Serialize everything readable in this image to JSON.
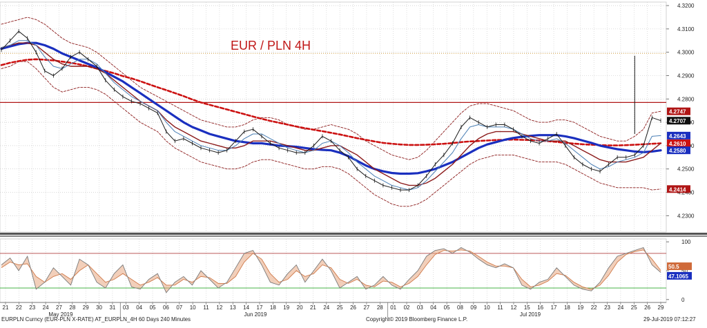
{
  "title": "EUR / PLN 4H",
  "footer": {
    "left": "EURPLN Curncy (EUR-PLN X-RATE) AT_EURPLN_4H 60 Days 240 Minutes",
    "center": "Copyright© 2019 Bloomberg Finance L.P.",
    "right": "29-Jul-2019 07:12:27"
  },
  "colors": {
    "price": "#1a1a1a",
    "ma_fast": "#4a7fb5",
    "ma_mid": "#8b1a1a",
    "ma_slow_blue": "#1a2fbf",
    "ma_long_dashed": "#cc1111",
    "bollinger": "#8b1a1a",
    "resistance": "#b01515",
    "dotted_level": "#d4a24c",
    "stoch_k": "#7a7a7a",
    "stoch_d": "#e8a882",
    "stoch_overbought": "#b04040",
    "stoch_oversold": "#2ea82e"
  },
  "chart_data": [
    {
      "type": "line",
      "title": "EUR / PLN 4H",
      "ylim": [
        4.223,
        4.3215
      ],
      "y_ticks": [
        "4.3200",
        "4.3100",
        "4.3000",
        "4.2900",
        "4.2800",
        "4.2700",
        "4.2600",
        "4.2500",
        "4.2400",
        "4.2300"
      ],
      "x_tick_labels": [
        "21",
        "22",
        "23",
        "24",
        "27",
        "28",
        "29",
        "30",
        "31",
        "03",
        "04",
        "05",
        "06",
        "07",
        "10",
        "11",
        "12",
        "13",
        "14",
        "17",
        "18",
        "19",
        "20",
        "21",
        "24",
        "25",
        "26",
        "27",
        "28",
        "01",
        "02",
        "03",
        "04",
        "05",
        "08",
        "09",
        "10",
        "11",
        "12",
        "15",
        "16",
        "17",
        "18",
        "19",
        "22",
        "23",
        "24",
        "25",
        "26",
        "29"
      ],
      "month_labels": [
        "May 2019",
        "Jun 2019",
        "Jul 2019"
      ],
      "horizontal_levels": [
        {
          "name": "resistance",
          "value": 4.2785
        },
        {
          "name": "dotted",
          "value": 4.2995
        }
      ],
      "last_value_tags": [
        {
          "value": "4.2747",
          "bg": "#b01515"
        },
        {
          "value": "4.2707",
          "bg": "#111111"
        },
        {
          "value": "4.2643",
          "bg": "#1a2fbf"
        },
        {
          "value": "4.2610",
          "bg": "#cc1111"
        },
        {
          "value": "4.2580",
          "bg": "#1a2fbf"
        },
        {
          "value": "4.2414",
          "bg": "#b01515"
        }
      ],
      "series": [
        {
          "role": "price",
          "values": [
            4.301,
            4.305,
            4.309,
            4.306,
            4.3,
            4.292,
            4.29,
            4.293,
            4.298,
            4.3,
            4.297,
            4.294,
            4.288,
            4.284,
            4.281,
            4.279,
            4.278,
            4.276,
            4.274,
            4.266,
            4.262,
            4.263,
            4.261,
            4.259,
            4.258,
            4.257,
            4.258,
            4.262,
            4.266,
            4.267,
            4.264,
            4.261,
            4.259,
            4.258,
            4.257,
            4.257,
            4.26,
            4.264,
            4.262,
            4.258,
            4.255,
            4.25,
            4.247,
            4.245,
            4.243,
            4.242,
            4.241,
            4.241,
            4.243,
            4.247,
            4.252,
            4.256,
            4.261,
            4.268,
            4.272,
            4.27,
            4.268,
            4.269,
            4.269,
            4.267,
            4.264,
            4.262,
            4.261,
            4.263,
            4.265,
            4.26,
            4.255,
            4.252,
            4.25,
            4.249,
            4.252,
            4.255,
            4.255,
            4.256,
            4.26,
            4.272,
            4.2707
          ]
        },
        {
          "role": "ma_fast",
          "values": [
            4.302,
            4.303,
            4.305,
            4.305,
            4.303,
            4.298,
            4.294,
            4.293,
            4.295,
            4.297,
            4.297,
            4.295,
            4.291,
            4.287,
            4.284,
            4.281,
            4.279,
            4.277,
            4.275,
            4.27,
            4.266,
            4.264,
            4.262,
            4.26,
            4.259,
            4.258,
            4.258,
            4.26,
            4.263,
            4.265,
            4.265,
            4.263,
            4.261,
            4.259,
            4.258,
            4.257,
            4.258,
            4.261,
            4.262,
            4.26,
            4.257,
            4.253,
            4.25,
            4.247,
            4.245,
            4.243,
            4.242,
            4.241,
            4.242,
            4.245,
            4.249,
            4.253,
            4.257,
            4.263,
            4.268,
            4.269,
            4.268,
            4.268,
            4.268,
            4.267,
            4.265,
            4.263,
            4.262,
            4.262,
            4.263,
            4.261,
            4.258,
            4.255,
            4.252,
            4.25,
            4.251,
            4.253,
            4.254,
            4.255,
            4.257,
            4.264,
            4.2643
          ]
        },
        {
          "role": "ma_mid",
          "values": [
            4.302,
            4.303,
            4.304,
            4.304,
            4.303,
            4.3,
            4.297,
            4.295,
            4.294,
            4.294,
            4.294,
            4.293,
            4.291,
            4.288,
            4.285,
            4.282,
            4.279,
            4.277,
            4.275,
            4.271,
            4.268,
            4.266,
            4.264,
            4.262,
            4.261,
            4.26,
            4.259,
            4.259,
            4.26,
            4.262,
            4.262,
            4.262,
            4.261,
            4.26,
            4.259,
            4.258,
            4.258,
            4.259,
            4.26,
            4.26,
            4.258,
            4.256,
            4.253,
            4.25,
            4.248,
            4.246,
            4.244,
            4.243,
            4.243,
            4.244,
            4.246,
            4.249,
            4.252,
            4.256,
            4.26,
            4.263,
            4.265,
            4.266,
            4.266,
            4.266,
            4.265,
            4.264,
            4.263,
            4.262,
            4.262,
            4.262,
            4.26,
            4.258,
            4.256,
            4.254,
            4.253,
            4.253,
            4.253,
            4.254,
            4.255,
            4.258,
            4.261
          ]
        },
        {
          "role": "ma_slow_blue",
          "values": [
            4.3015,
            4.3025,
            4.3035,
            4.304,
            4.304,
            4.303,
            4.3015,
            4.2995,
            4.298,
            4.2965,
            4.295,
            4.2935,
            4.2915,
            4.2895,
            4.2875,
            4.285,
            4.2825,
            4.28,
            4.2775,
            4.275,
            4.2725,
            4.27,
            4.268,
            4.2665,
            4.265,
            4.264,
            4.263,
            4.262,
            4.2615,
            4.261,
            4.261,
            4.2605,
            4.26,
            4.2598,
            4.2595,
            4.259,
            4.2585,
            4.2582,
            4.258,
            4.257,
            4.2555,
            4.2535,
            4.2515,
            4.25,
            4.249,
            4.2483,
            4.248,
            4.248,
            4.2482,
            4.249,
            4.25,
            4.2515,
            4.253,
            4.255,
            4.257,
            4.259,
            4.2605,
            4.2615,
            4.2625,
            4.2633,
            4.2638,
            4.2642,
            4.2645,
            4.2645,
            4.2645,
            4.264,
            4.2632,
            4.2622,
            4.2612,
            4.26,
            4.2592,
            4.2585,
            4.258,
            4.2575,
            4.2572,
            4.2575,
            4.258
          ]
        },
        {
          "role": "ma_long_dashed",
          "values": [
            4.2945,
            4.2955,
            4.2962,
            4.2968,
            4.297,
            4.2968,
            4.2965,
            4.296,
            4.2955,
            4.2948,
            4.294,
            4.293,
            4.292,
            4.291,
            4.2898,
            4.2888,
            4.2876,
            4.2863,
            4.285,
            4.2838,
            4.2825,
            4.2812,
            4.2798,
            4.2785,
            4.2775,
            4.2765,
            4.2755,
            4.2745,
            4.2735,
            4.2725,
            4.2715,
            4.2706,
            4.2698,
            4.269,
            4.2682,
            4.2675,
            4.2668,
            4.2662,
            4.2655,
            4.2648,
            4.264,
            4.2632,
            4.2625,
            4.2618,
            4.2612,
            4.2608,
            4.2605,
            4.2603,
            4.2603,
            4.2604,
            4.2606,
            4.2608,
            4.2611,
            4.2615,
            4.2618,
            4.262,
            4.2622,
            4.2624,
            4.2625,
            4.2626,
            4.2625,
            4.2624,
            4.2622,
            4.2619,
            4.2616,
            4.2612,
            4.2609,
            4.2606,
            4.2604,
            4.2602,
            4.2601,
            4.2601,
            4.2602,
            4.2604,
            4.2606,
            4.2608,
            4.261
          ]
        },
        {
          "role": "bb_upper",
          "values": [
            4.312,
            4.313,
            4.314,
            4.315,
            4.314,
            4.312,
            4.309,
            4.306,
            4.304,
            4.303,
            4.302,
            4.3,
            4.297,
            4.294,
            4.291,
            4.288,
            4.285,
            4.283,
            4.281,
            4.279,
            4.277,
            4.275,
            4.273,
            4.271,
            4.27,
            4.269,
            4.268,
            4.268,
            4.269,
            4.271,
            4.272,
            4.272,
            4.271,
            4.269,
            4.268,
            4.267,
            4.267,
            4.268,
            4.269,
            4.268,
            4.267,
            4.265,
            4.262,
            4.26,
            4.258,
            4.256,
            4.255,
            4.254,
            4.255,
            4.258,
            4.262,
            4.266,
            4.27,
            4.274,
            4.277,
            4.278,
            4.278,
            4.277,
            4.276,
            4.275,
            4.273,
            4.271,
            4.27,
            4.27,
            4.271,
            4.271,
            4.27,
            4.268,
            4.266,
            4.264,
            4.263,
            4.262,
            4.262,
            4.264,
            4.267,
            4.274,
            4.2747
          ]
        },
        {
          "role": "bb_lower",
          "values": [
            4.293,
            4.294,
            4.296,
            4.296,
            4.293,
            4.289,
            4.285,
            4.283,
            4.284,
            4.285,
            4.285,
            4.284,
            4.282,
            4.279,
            4.276,
            4.273,
            4.27,
            4.268,
            4.266,
            4.262,
            4.259,
            4.257,
            4.255,
            4.253,
            4.252,
            4.251,
            4.25,
            4.25,
            4.251,
            4.253,
            4.254,
            4.254,
            4.253,
            4.252,
            4.251,
            4.25,
            4.25,
            4.251,
            4.251,
            4.25,
            4.248,
            4.245,
            4.242,
            4.239,
            4.237,
            4.235,
            4.234,
            4.234,
            4.235,
            4.237,
            4.24,
            4.243,
            4.246,
            4.249,
            4.252,
            4.254,
            4.255,
            4.256,
            4.256,
            4.256,
            4.255,
            4.254,
            4.253,
            4.253,
            4.253,
            4.252,
            4.25,
            4.248,
            4.246,
            4.244,
            4.243,
            4.242,
            4.242,
            4.242,
            4.242,
            4.241,
            4.2414
          ]
        }
      ]
    },
    {
      "type": "line",
      "ylim": [
        -5,
        105
      ],
      "y_ticks": [
        "100",
        "50",
        "0"
      ],
      "levels": [
        {
          "name": "overbought",
          "value": 80
        },
        {
          "name": "oversold",
          "value": 20
        }
      ],
      "last_value_tags": [
        {
          "value": "47.1065",
          "bg": "#1a2fbf"
        },
        {
          "value": "50.5",
          "bg": "#cf6a3a"
        }
      ],
      "series": [
        {
          "role": "stoch_k",
          "values": [
            60,
            72,
            50,
            75,
            18,
            30,
            55,
            40,
            25,
            70,
            60,
            30,
            20,
            45,
            60,
            22,
            18,
            35,
            45,
            12,
            30,
            40,
            25,
            50,
            35,
            20,
            30,
            55,
            80,
            85,
            60,
            30,
            25,
            45,
            60,
            30,
            50,
            70,
            50,
            20,
            30,
            40,
            18,
            25,
            40,
            25,
            18,
            35,
            50,
            75,
            85,
            88,
            80,
            90,
            82,
            70,
            60,
            55,
            62,
            55,
            25,
            18,
            30,
            35,
            55,
            40,
            25,
            18,
            15,
            30,
            55,
            75,
            80,
            85,
            90,
            60,
            47
          ]
        },
        {
          "role": "stoch_d",
          "values": [
            55,
            65,
            60,
            62,
            40,
            30,
            40,
            45,
            35,
            50,
            60,
            45,
            30,
            35,
            45,
            35,
            25,
            30,
            38,
            25,
            25,
            35,
            30,
            40,
            38,
            28,
            28,
            40,
            65,
            80,
            70,
            45,
            30,
            35,
            50,
            40,
            45,
            60,
            55,
            35,
            28,
            35,
            25,
            22,
            32,
            30,
            22,
            28,
            40,
            60,
            78,
            85,
            84,
            86,
            84,
            75,
            65,
            58,
            58,
            55,
            35,
            22,
            25,
            32,
            45,
            42,
            30,
            22,
            18,
            25,
            42,
            65,
            78,
            83,
            86,
            70,
            50.5
          ]
        }
      ]
    }
  ]
}
